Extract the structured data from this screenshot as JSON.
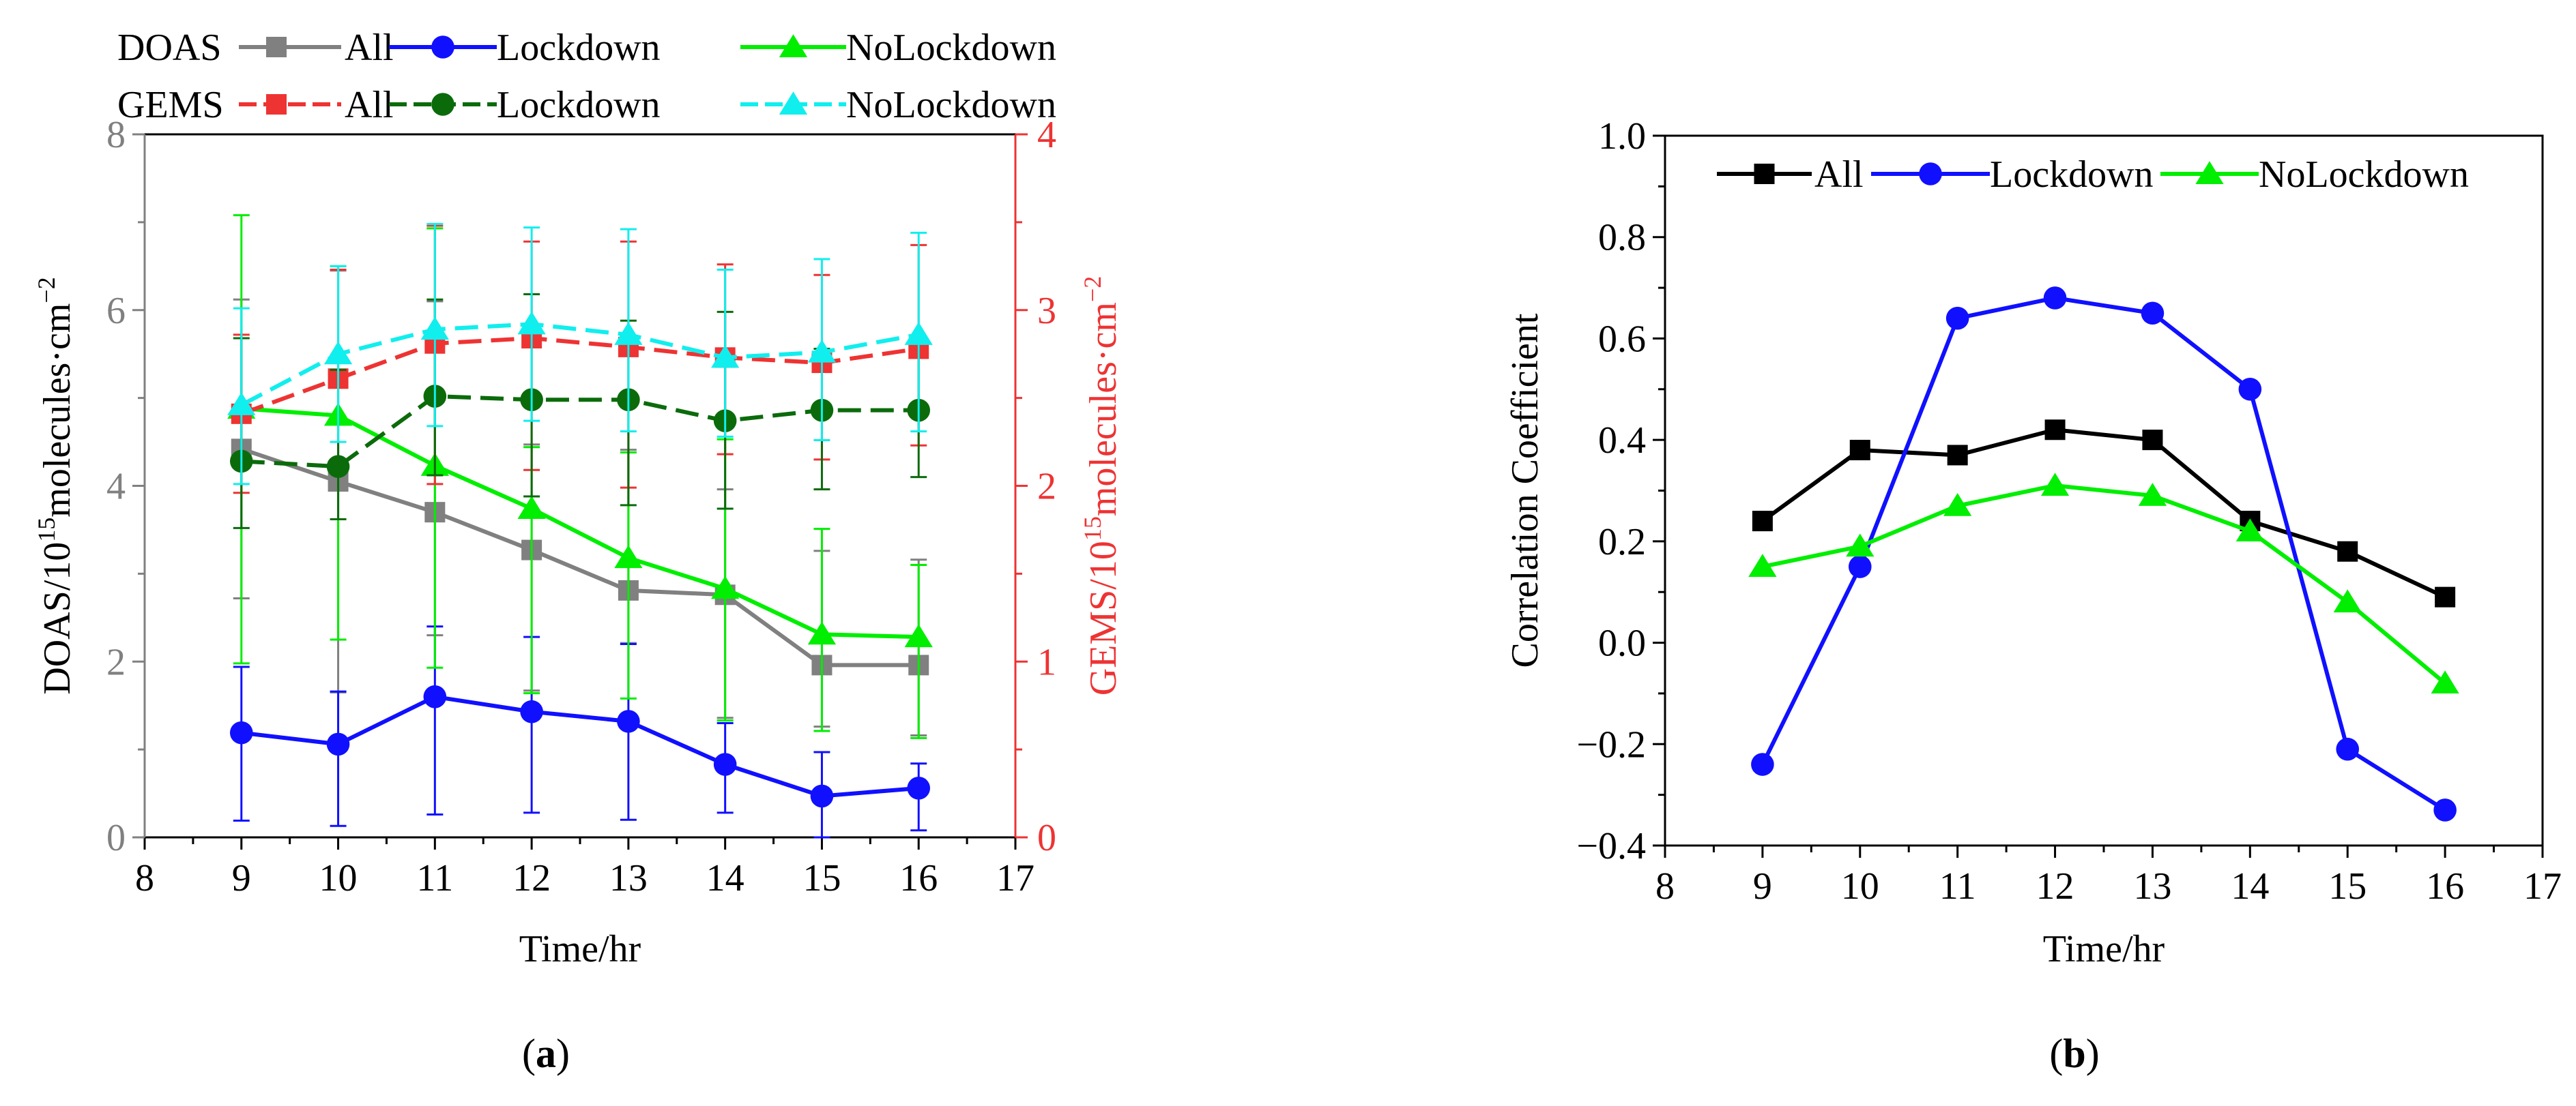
{
  "chart_data": [
    {
      "panel": "a",
      "panel_label": "a",
      "type": "line",
      "xlabel": "Time/hr",
      "ylabel_left": {
        "prefix": "DOAS/10",
        "sup": "15",
        "mid": "molecules·cm",
        "sup2": "−2"
      },
      "ylabel_right": {
        "prefix": "GEMS/10",
        "sup": "15",
        "mid": "molecules·cm",
        "sup2": "−2"
      },
      "xlim": [
        8,
        17
      ],
      "x_ticks": [
        8,
        9,
        10,
        11,
        12,
        13,
        14,
        15,
        16,
        17
      ],
      "ylim_left": [
        0,
        8
      ],
      "y_ticks_left": [
        0,
        2,
        4,
        6,
        8
      ],
      "ylim_right": [
        0,
        4
      ],
      "y_ticks_right": [
        0,
        1,
        2,
        3,
        4
      ],
      "legend": [
        {
          "group": "DOAS",
          "items": [
            {
              "label": "All",
              "series": "DOAS_All"
            },
            {
              "label": "Lockdown",
              "series": "DOAS_Lockdown"
            },
            {
              "label": "NoLockdown",
              "series": "DOAS_NoLockdown"
            }
          ]
        },
        {
          "group": "GEMS",
          "items": [
            {
              "label": "All",
              "series": "GEMS_All"
            },
            {
              "label": "Lockdown",
              "series": "GEMS_Lockdown"
            },
            {
              "label": "NoLockdown",
              "series": "GEMS_NoLockdown"
            }
          ]
        }
      ],
      "series": [
        {
          "id": "DOAS_All",
          "name": "DOAS All",
          "axis": "left",
          "color": "#808080",
          "marker": "square",
          "dash": false,
          "x": [
            9,
            10,
            11,
            12,
            13,
            14,
            15,
            16
          ],
          "values": [
            4.42,
            4.05,
            3.7,
            3.27,
            2.81,
            2.76,
            1.96,
            1.96
          ],
          "err_lo": [
            1.7,
            2.4,
            1.4,
            1.6,
            0.6,
            1.4,
            0.7,
            0.8
          ],
          "err_hi": [
            1.7,
            2.4,
            2.4,
            1.2,
            1.6,
            1.2,
            1.3,
            1.2
          ]
        },
        {
          "id": "DOAS_Lockdown",
          "name": "DOAS Lockdown",
          "axis": "left",
          "color": "#1010ff",
          "marker": "circle",
          "dash": false,
          "x": [
            9,
            10,
            11,
            12,
            13,
            14,
            15,
            16
          ],
          "values": [
            1.19,
            1.06,
            1.6,
            1.43,
            1.32,
            0.83,
            0.47,
            0.56
          ],
          "err_lo": [
            1.0,
            0.93,
            1.34,
            1.15,
            1.12,
            0.55,
            0.47,
            0.48
          ],
          "err_hi": [
            0.75,
            0.6,
            0.8,
            0.85,
            0.88,
            0.47,
            0.5,
            0.28
          ]
        },
        {
          "id": "DOAS_NoLockdown",
          "name": "DOAS NoLockdown",
          "axis": "left",
          "color": "#00ee00",
          "marker": "triangle",
          "dash": false,
          "x": [
            9,
            10,
            11,
            12,
            13,
            14,
            15,
            16
          ],
          "values": [
            4.88,
            4.8,
            4.23,
            3.74,
            3.18,
            2.83,
            2.31,
            2.28
          ],
          "err_lo": [
            2.9,
            2.55,
            2.3,
            2.1,
            1.6,
            1.5,
            1.1,
            1.15
          ],
          "err_hi": [
            2.2,
            1.7,
            2.7,
            0.7,
            1.2,
            1.7,
            1.2,
            0.82
          ]
        },
        {
          "id": "GEMS_All",
          "name": "GEMS All",
          "axis": "right",
          "color": "#ee3333",
          "marker": "square",
          "dash": true,
          "x": [
            9,
            10,
            11,
            12,
            13,
            14,
            15,
            16
          ],
          "values": [
            2.41,
            2.61,
            2.81,
            2.84,
            2.79,
            2.73,
            2.7,
            2.78
          ],
          "err_lo": [
            0.45,
            0.5,
            0.8,
            0.75,
            0.8,
            0.55,
            0.55,
            0.55
          ],
          "err_hi": [
            0.45,
            0.62,
            0.67,
            0.55,
            0.6,
            0.53,
            0.5,
            0.59
          ]
        },
        {
          "id": "GEMS_Lockdown",
          "name": "GEMS Lockdown",
          "axis": "right",
          "color": "#0b6b0b",
          "marker": "circle",
          "dash": true,
          "x": [
            9,
            10,
            11,
            12,
            13,
            14,
            15,
            16
          ],
          "values": [
            2.14,
            2.11,
            2.51,
            2.49,
            2.49,
            2.37,
            2.43,
            2.43
          ],
          "err_lo": [
            0.38,
            0.3,
            0.45,
            0.55,
            0.6,
            0.5,
            0.45,
            0.38
          ],
          "err_hi": [
            0.7,
            0.55,
            0.55,
            0.6,
            0.45,
            0.62,
            0.35,
            0.42
          ]
        },
        {
          "id": "GEMS_NoLockdown",
          "name": "GEMS NoLockdown",
          "axis": "right",
          "color": "#11eeee",
          "marker": "triangle",
          "dash": true,
          "x": [
            9,
            10,
            11,
            12,
            13,
            14,
            15,
            16
          ],
          "values": [
            2.46,
            2.75,
            2.89,
            2.92,
            2.86,
            2.73,
            2.76,
            2.86
          ],
          "err_lo": [
            0.45,
            0.5,
            0.55,
            0.55,
            0.55,
            0.45,
            0.5,
            0.55
          ],
          "err_hi": [
            0.55,
            0.5,
            0.6,
            0.55,
            0.6,
            0.5,
            0.53,
            0.58
          ]
        }
      ]
    },
    {
      "panel": "b",
      "panel_label": "b",
      "type": "line",
      "xlabel": "Time/hr",
      "ylabel": "Correlation Coefficient",
      "xlim": [
        8,
        17
      ],
      "x_ticks": [
        8,
        9,
        10,
        11,
        12,
        13,
        14,
        15,
        16,
        17
      ],
      "ylim": [
        -0.4,
        1.0
      ],
      "y_ticks": [
        -0.4,
        -0.2,
        0.0,
        0.2,
        0.4,
        0.6,
        0.8,
        1.0
      ],
      "y_tick_labels": [
        "−0.4",
        "−0.2",
        "0.0",
        "0.2",
        "0.4",
        "0.6",
        "0.8",
        "1.0"
      ],
      "legend": [
        {
          "label": "All",
          "series": "All"
        },
        {
          "label": "Lockdown",
          "series": "Lockdown"
        },
        {
          "label": "NoLockdown",
          "series": "NoLockdown"
        }
      ],
      "series": [
        {
          "id": "All",
          "name": "All",
          "color": "#000000",
          "marker": "square",
          "x": [
            9,
            10,
            11,
            12,
            13,
            14,
            15,
            16
          ],
          "values": [
            0.24,
            0.38,
            0.37,
            0.42,
            0.4,
            0.24,
            0.18,
            0.09
          ]
        },
        {
          "id": "Lockdown",
          "name": "Lockdown",
          "color": "#1010ff",
          "marker": "circle",
          "x": [
            9,
            10,
            11,
            12,
            13,
            14,
            15,
            16
          ],
          "values": [
            -0.24,
            0.15,
            0.64,
            0.68,
            0.65,
            0.5,
            -0.21,
            -0.33
          ]
        },
        {
          "id": "NoLockdown",
          "name": "NoLockdown",
          "color": "#00ee00",
          "marker": "triangle",
          "x": [
            9,
            10,
            11,
            12,
            13,
            14,
            15,
            16
          ],
          "values": [
            0.15,
            0.19,
            0.27,
            0.31,
            0.29,
            0.22,
            0.08,
            -0.08
          ]
        }
      ]
    }
  ]
}
